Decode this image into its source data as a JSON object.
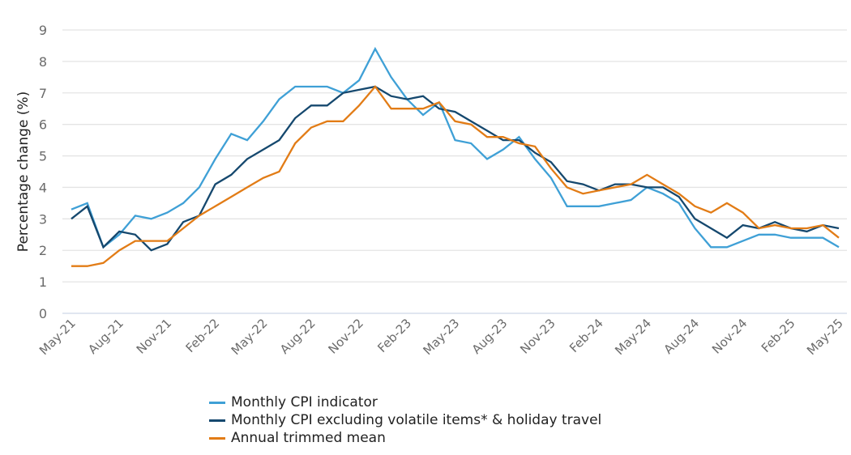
{
  "chart_data": {
    "type": "line",
    "title": "",
    "xlabel": "",
    "ylabel": "Percentage change (%)",
    "ylim": [
      0,
      9
    ],
    "yticks": [
      0,
      1,
      2,
      3,
      4,
      5,
      6,
      7,
      8,
      9
    ],
    "grid": true,
    "legend_position": "bottom",
    "x": [
      "May-21",
      "Jun-21",
      "Jul-21",
      "Aug-21",
      "Sep-21",
      "Oct-21",
      "Nov-21",
      "Dec-21",
      "Jan-22",
      "Feb-22",
      "Mar-22",
      "Apr-22",
      "May-22",
      "Jun-22",
      "Jul-22",
      "Aug-22",
      "Sep-22",
      "Oct-22",
      "Nov-22",
      "Dec-22",
      "Jan-23",
      "Feb-23",
      "Mar-23",
      "Apr-23",
      "May-23",
      "Jun-23",
      "Jul-23",
      "Aug-23",
      "Sep-23",
      "Oct-23",
      "Nov-23",
      "Dec-23",
      "Jan-24",
      "Feb-24",
      "Mar-24",
      "Apr-24",
      "May-24",
      "Jun-24",
      "Jul-24",
      "Aug-24",
      "Sep-24",
      "Oct-24",
      "Nov-24",
      "Dec-24",
      "Jan-25",
      "Feb-25",
      "Mar-25",
      "Apr-25",
      "May-25"
    ],
    "xtick_labels": [
      "May-21",
      "Aug-21",
      "Nov-21",
      "Feb-22",
      "May-22",
      "Aug-22",
      "Nov-22",
      "Feb-23",
      "May-23",
      "Aug-23",
      "Nov-23",
      "Feb-24",
      "May-24",
      "Aug-24",
      "Nov-24",
      "Feb-25",
      "May-25"
    ],
    "series": [
      {
        "name": "Monthly CPI indicator",
        "color": "#3fa0d6",
        "values": [
          3.3,
          3.5,
          2.1,
          2.5,
          3.1,
          3.0,
          3.2,
          3.5,
          4.0,
          4.9,
          5.7,
          5.5,
          6.1,
          6.8,
          7.2,
          7.2,
          7.2,
          7.0,
          7.4,
          8.4,
          7.5,
          6.8,
          6.3,
          6.7,
          5.5,
          5.4,
          4.9,
          5.2,
          5.6,
          4.9,
          4.3,
          3.4,
          3.4,
          3.4,
          3.5,
          3.6,
          4.0,
          3.8,
          3.5,
          2.7,
          2.1,
          2.1,
          2.3,
          2.5,
          2.5,
          2.4,
          2.4,
          2.4,
          2.1
        ]
      },
      {
        "name": "Monthly CPI excluding volatile items* & holiday travel",
        "color": "#15486e",
        "values": [
          3.0,
          3.4,
          2.1,
          2.6,
          2.5,
          2.0,
          2.2,
          2.9,
          3.1,
          4.1,
          4.4,
          4.9,
          5.2,
          5.5,
          6.2,
          6.6,
          6.6,
          7.0,
          7.1,
          7.2,
          6.9,
          6.8,
          6.9,
          6.5,
          6.4,
          6.1,
          5.8,
          5.5,
          5.5,
          5.1,
          4.8,
          4.2,
          4.1,
          3.9,
          4.1,
          4.1,
          4.0,
          4.0,
          3.7,
          3.0,
          2.7,
          2.4,
          2.8,
          2.7,
          2.9,
          2.7,
          2.6,
          2.8,
          2.7
        ]
      },
      {
        "name": "Annual trimmed mean",
        "color": "#e27c16",
        "values": [
          1.5,
          1.5,
          1.6,
          2.0,
          2.3,
          2.3,
          2.3,
          2.7,
          3.1,
          3.4,
          3.7,
          4.0,
          4.3,
          4.5,
          5.4,
          5.9,
          6.1,
          6.1,
          6.6,
          7.2,
          6.5,
          6.5,
          6.5,
          6.7,
          6.1,
          6.0,
          5.6,
          5.6,
          5.4,
          5.3,
          4.6,
          4.0,
          3.8,
          3.9,
          4.0,
          4.1,
          4.4,
          4.1,
          3.8,
          3.4,
          3.2,
          3.5,
          3.2,
          2.7,
          2.8,
          2.7,
          2.7,
          2.8,
          2.4
        ]
      }
    ]
  }
}
